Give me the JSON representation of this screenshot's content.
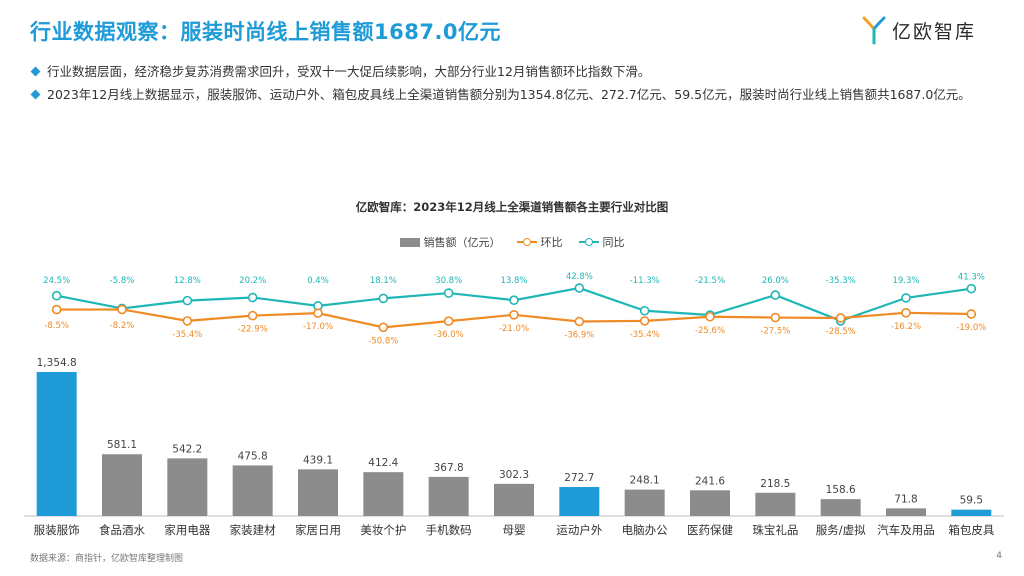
{
  "header": {
    "title": "行业数据观察：服装时尚线上销售额1687.0亿元",
    "logo_text": "亿欧智库"
  },
  "bullets": [
    "行业数据层面，经济稳步复苏消费需求回升，受双十一大促后续影响，大部分行业12月销售额环比指数下滑。",
    "2023年12月线上数据显示，服装服饰、运动户外、箱包皮具线上全渠道销售额分别为1354.8亿元、272.7亿元、59.5亿元，服装时尚行业线上销售额共1687.0亿元。"
  ],
  "footer": {
    "source": "数据来源：商指针，亿欧智库整理制图",
    "page": "4"
  },
  "colors": {
    "accent": "#1f9bd8",
    "bar_gray": "#8c8c8c",
    "huanbi": "#f08a24",
    "tongbi": "#1fb6b6"
  },
  "chart_data": {
    "type": "bar",
    "title": "亿欧智库：2023年12月线上全渠道销售额各主要行业对比图",
    "legend": [
      "销售额（亿元）",
      "环比",
      "同比"
    ],
    "legend_position": "top",
    "categories": [
      "服装服饰",
      "食品酒水",
      "家用电器",
      "家装建材",
      "家居日用",
      "美妆个护",
      "手机数码",
      "母婴",
      "运动户外",
      "电脑办公",
      "医药保健",
      "珠宝礼品",
      "服务/虚拟",
      "汽车及用品",
      "箱包皮具"
    ],
    "highlight": [
      "服装服饰",
      "运动户外",
      "箱包皮具"
    ],
    "series": [
      {
        "name": "销售额（亿元）",
        "type": "bar",
        "values": [
          1354.8,
          581.1,
          542.2,
          475.8,
          439.1,
          412.4,
          367.8,
          302.3,
          272.7,
          248.1,
          241.6,
          218.5,
          158.6,
          71.8,
          59.5
        ],
        "labels": [
          "1,354.8",
          "581.1",
          "542.2",
          "475.8",
          "439.1",
          "412.4",
          "367.8",
          "302.3",
          "272.7",
          "248.1",
          "241.6",
          "218.5",
          "158.6",
          "71.8",
          "59.5"
        ]
      },
      {
        "name": "环比",
        "type": "line",
        "values": [
          -8.5,
          -8.2,
          -35.4,
          -22.9,
          -17.0,
          -50.8,
          -36.0,
          -21.0,
          -36.9,
          -35.4,
          -25.6,
          -27.5,
          -28.5,
          -16.2,
          -19.0
        ],
        "labels": [
          "-8.5%",
          "-8.2%",
          "-35.4%",
          "-22.9%",
          "-17.0%",
          "-50.8%",
          "-36.0%",
          "-21.0%",
          "-36.9%",
          "-35.4%",
          "-25.6%",
          "-27.5%",
          "-28.5%",
          "-16.2%",
          "-19.0%"
        ]
      },
      {
        "name": "同比",
        "type": "line",
        "values": [
          24.5,
          -5.8,
          12.8,
          20.2,
          0.4,
          18.1,
          30.8,
          13.8,
          42.8,
          -11.3,
          -21.5,
          26.0,
          -35.3,
          19.3,
          41.3
        ],
        "labels": [
          "24.5%",
          "-5.8%",
          "12.8%",
          "20.2%",
          "0.4%",
          "18.1%",
          "30.8%",
          "13.8%",
          "42.8%",
          "-11.3%",
          "-21.5%",
          "26.0%",
          "-35.3%",
          "19.3%",
          "41.3%"
        ]
      }
    ],
    "grid": false
  }
}
